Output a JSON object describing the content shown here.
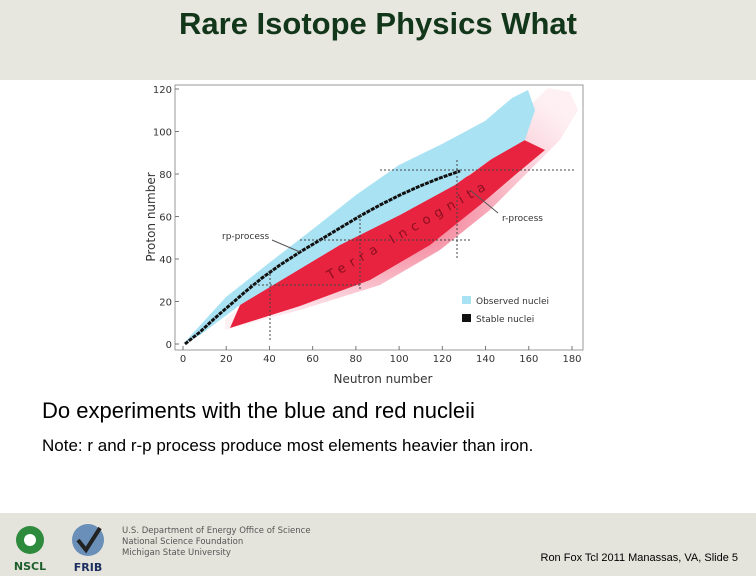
{
  "slide": {
    "title": "Rare Isotope Physics What",
    "figure": {
      "x_label": "Neutron number",
      "y_label": "Proton number",
      "xticks": [
        0,
        20,
        40,
        60,
        80,
        100,
        120,
        140,
        160,
        180
      ],
      "yticks": [
        0,
        20,
        40,
        60,
        80,
        100,
        120
      ],
      "annotations": [
        "rp-process",
        "r-process"
      ],
      "region_label": "Terra Incognita",
      "legend": [
        "Observed nuclei",
        "Stable nuclei"
      ]
    },
    "body": [
      "Do experiments with the blue and red nucleii",
      "Note: r and r-p process produce most elements heavier than iron."
    ],
    "footer": {
      "logos": [
        "NSCL",
        "FRIB"
      ],
      "agency": [
        "U.S. Department of Energy Office of Science",
        "National Science Foundation",
        "Michigan State University"
      ],
      "credit": "Ron Fox Tcl 2011 Manassas, VA, Slide 5"
    }
  }
}
